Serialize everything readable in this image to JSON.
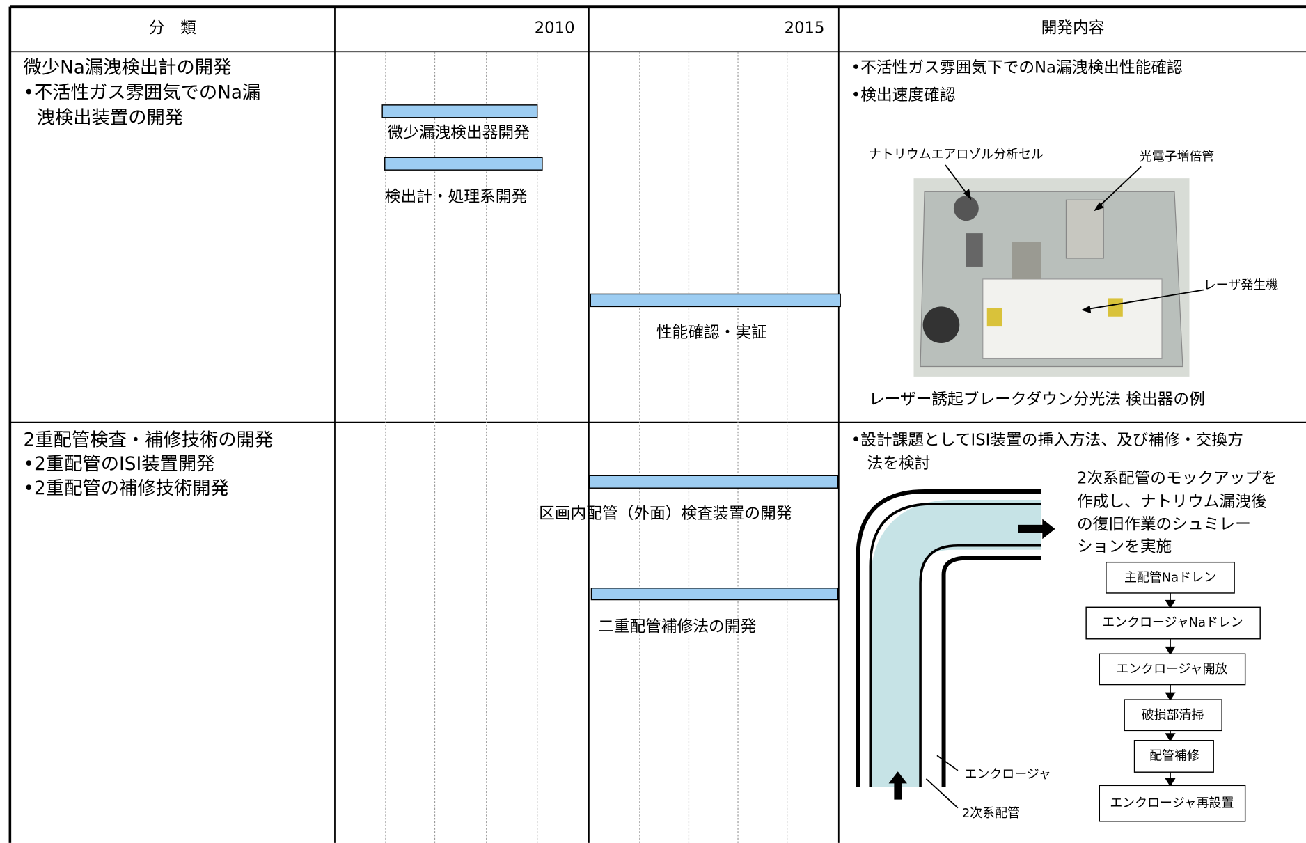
{
  "header": {
    "columns": [
      "分　類",
      "2010",
      "2015",
      "開発内容"
    ]
  },
  "rows": [
    {
      "category": [
        "微少Na漏洩検出計の開発",
        "•不活性ガス雰囲気でのNa漏",
        "洩検出装置の開発"
      ],
      "tasks": [
        "微少漏洩検出器開発",
        "検出計・処理系開発",
        "性能確認・実証"
      ],
      "content": {
        "bullets": [
          "•不活性ガス雰囲気下でのNa漏洩検出性能確認",
          "•検出速度確認"
        ],
        "figure_labels": [
          "ナトリウムエアロゾル分析セル",
          "光電子増倍管",
          "レーザ発生機"
        ],
        "caption": "レーザー誘起ブレークダウン分光法 検出器の例"
      }
    },
    {
      "category": [
        "2重配管検査・補修技術の開発",
        "•2重配管のISI装置開発",
        "•2重配管の補修技術開発"
      ],
      "tasks": [
        "区画内配管（外面）検査装置の開発",
        "二重配管補修法の開発"
      ],
      "content": {
        "bullets": [
          "•設計課題としてISI装置の挿入方法、及び補修・交換方",
          "法を検討"
        ],
        "description": [
          "2次系配管のモックアップを",
          "作成し、ナトリウム漏洩後",
          "の復旧作業のシュミレー",
          "ションを実施"
        ],
        "flow": [
          "主配管Naドレン",
          "エンクロージャNaドレン",
          "エンクロージャ開放",
          "破損部清掃",
          "配管補修",
          "エンクロージャ再設置"
        ],
        "figure_labels": [
          "エンクロージャ",
          "2次系配管"
        ]
      }
    }
  ]
}
